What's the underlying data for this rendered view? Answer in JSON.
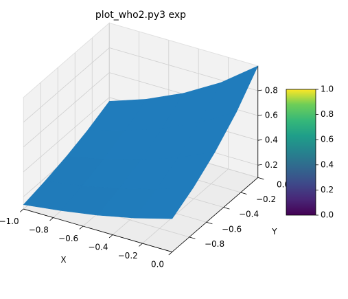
{
  "chart_data": {
    "type": "surface",
    "title": "plot_who2.py3 exp",
    "x_label": "X",
    "y_label": "Y",
    "x": [
      -1,
      -0.75,
      -0.5,
      -0.25,
      0
    ],
    "y": [
      -1,
      -0.75,
      -0.5,
      -0.25,
      0
    ],
    "z": [
      [
        0.135,
        0.174,
        0.223,
        0.287,
        0.368
      ],
      [
        0.174,
        0.223,
        0.287,
        0.368,
        0.472
      ],
      [
        0.223,
        0.287,
        0.368,
        0.472,
        0.607
      ],
      [
        0.287,
        0.368,
        0.472,
        0.607,
        0.779
      ],
      [
        0.368,
        0.472,
        0.607,
        0.779,
        1.0
      ]
    ],
    "color": "#1f77b4",
    "xlim": [
      -1,
      0
    ],
    "ylim": [
      -1,
      0
    ],
    "zlim": [
      0.1,
      1.0
    ],
    "xticks": [
      {
        "value": -1,
        "label": "−1.0"
      },
      {
        "value": -0.8,
        "label": "−0.8"
      },
      {
        "value": -0.6,
        "label": "−0.6"
      },
      {
        "value": -0.4,
        "label": "−0.4"
      },
      {
        "value": -0.2,
        "label": "−0.2"
      },
      {
        "value": 0,
        "label": "0.0"
      }
    ],
    "yticks": [
      {
        "value": -0.8,
        "label": "−0.8"
      },
      {
        "value": -0.6,
        "label": "−0.6"
      },
      {
        "value": -0.4,
        "label": "−0.4"
      },
      {
        "value": -0.2,
        "label": "−0.2"
      },
      {
        "value": 0,
        "label": "0.0"
      }
    ],
    "zticks": [
      0.2,
      0.4,
      0.6,
      0.8
    ],
    "grid": true,
    "colorbar": {
      "colormap": "viridis",
      "lim": [
        0,
        1
      ],
      "ticks": [
        {
          "value": 0,
          "label": "0.0"
        },
        0.2,
        0.4,
        0.6,
        0.8,
        {
          "value": 1,
          "label": "1.0"
        }
      ]
    }
  }
}
